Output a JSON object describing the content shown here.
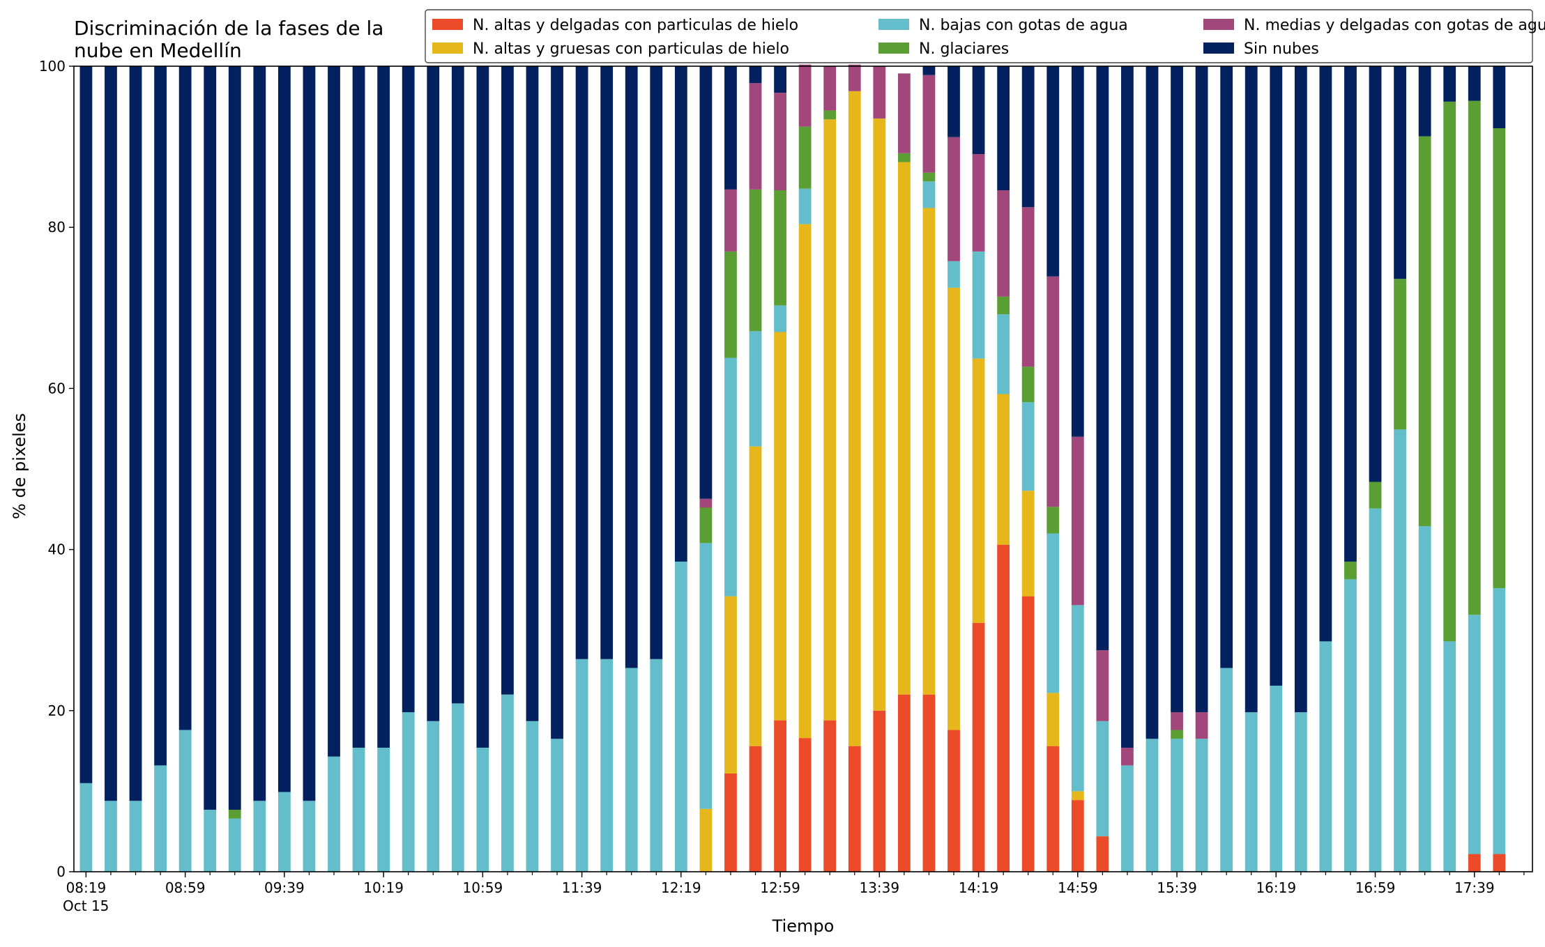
{
  "chart_data": {
    "type": "bar",
    "stacked": true,
    "title": "Discriminación de la fases de la nube en Medellín",
    "title_lines": [
      "Discriminación de la fases de la",
      "nube en Medellín"
    ],
    "xlabel": "Tiempo",
    "ylabel": "% de pixeles",
    "ylim": [
      0,
      100
    ],
    "yticks": [
      0,
      20,
      40,
      60,
      80,
      100
    ],
    "grid": false,
    "legend_position": "top-right",
    "x_start": "08:19",
    "x_interval_minutes": 10,
    "x_tick_labels": [
      "08:19",
      "08:59",
      "09:39",
      "10:19",
      "10:59",
      "11:39",
      "12:19",
      "12:59",
      "13:39",
      "14:19",
      "14:59",
      "15:39",
      "16:19",
      "16:59",
      "17:39"
    ],
    "x_date_label": "Oct 15",
    "categories": [
      "08:19",
      "08:29",
      "08:39",
      "08:49",
      "08:59",
      "09:09",
      "09:19",
      "09:29",
      "09:39",
      "09:49",
      "09:59",
      "10:09",
      "10:19",
      "10:29",
      "10:39",
      "10:49",
      "10:59",
      "11:09",
      "11:19",
      "11:29",
      "11:39",
      "11:49",
      "11:59",
      "12:09",
      "12:19",
      "12:29",
      "12:39",
      "12:49",
      "12:59",
      "13:09",
      "13:19",
      "13:29",
      "13:39",
      "13:49",
      "13:59",
      "14:09",
      "14:19",
      "14:29",
      "14:39",
      "14:49",
      "14:59",
      "15:09",
      "15:19",
      "15:29",
      "15:39",
      "15:49",
      "15:59",
      "16:09",
      "16:19",
      "16:29",
      "16:39",
      "16:49",
      "16:59",
      "17:09",
      "17:19",
      "17:29",
      "17:39",
      "17:49"
    ],
    "series": [
      {
        "name": "N. altas y delgadas con particulas de hielo",
        "color": "#ec4b2a",
        "values": [
          0,
          0,
          0,
          0,
          0,
          0,
          0,
          0,
          0,
          0,
          0,
          0,
          0,
          0,
          0,
          0,
          0,
          0,
          0,
          0,
          0,
          0,
          0,
          0,
          0,
          0,
          12.2,
          15.6,
          18.8,
          16.6,
          18.8,
          15.6,
          20.0,
          22.0,
          22.0,
          17.6,
          30.9,
          40.6,
          34.2,
          15.6,
          8.9,
          4.4,
          0,
          0,
          0,
          0,
          0,
          0,
          0,
          0,
          0,
          0,
          0,
          0,
          0,
          0,
          2.2,
          2.2
        ]
      },
      {
        "name": "N. altas y gruesas con particulas de hielo",
        "color": "#e5b71b",
        "values": [
          0,
          0,
          0,
          0,
          0,
          0,
          0,
          0,
          0,
          0,
          0,
          0,
          0,
          0,
          0,
          0,
          0,
          0,
          0,
          0,
          0,
          0,
          0,
          0,
          0,
          7.8,
          22.0,
          37.2,
          48.2,
          63.8,
          74.6,
          81.3,
          73.5,
          66.1,
          60.4,
          54.9,
          32.8,
          18.7,
          13.1,
          6.6,
          1.1,
          0,
          0,
          0,
          0,
          0,
          0,
          0,
          0,
          0,
          0,
          0,
          0,
          0,
          0,
          0,
          0,
          0
        ]
      },
      {
        "name": "N. bajas con gotas de agua",
        "color": "#63bdca",
        "values": [
          11.0,
          8.8,
          8.8,
          13.2,
          17.6,
          7.7,
          6.6,
          8.8,
          9.9,
          8.8,
          14.3,
          15.4,
          15.4,
          19.8,
          18.7,
          20.9,
          15.4,
          22.0,
          18.7,
          16.5,
          26.4,
          26.4,
          25.3,
          26.4,
          38.5,
          33.0,
          29.6,
          14.3,
          3.3,
          4.4,
          0,
          0,
          0,
          0,
          3.3,
          3.3,
          13.3,
          9.9,
          11.0,
          19.8,
          23.1,
          14.3,
          13.2,
          16.5,
          16.5,
          16.5,
          25.3,
          19.8,
          23.1,
          19.8,
          28.6,
          36.3,
          45.1,
          54.9,
          42.9,
          28.6,
          29.7,
          33.0
        ]
      },
      {
        "name": "N. glaciares",
        "color": "#5b9e33",
        "values": [
          0,
          0,
          0,
          0,
          0,
          0,
          1.1,
          0,
          0,
          0,
          0,
          0,
          0,
          0,
          0,
          0,
          0,
          0,
          0,
          0,
          0,
          0,
          0,
          0,
          0,
          4.4,
          13.2,
          17.6,
          14.3,
          7.7,
          1.1,
          0,
          0,
          1.1,
          1.1,
          0,
          0,
          2.2,
          4.4,
          3.3,
          0,
          0,
          0,
          0,
          1.1,
          0,
          0,
          0,
          0,
          0,
          0,
          2.2,
          3.3,
          18.7,
          48.4,
          67.0,
          63.8,
          57.1
        ]
      },
      {
        "name": "N. medias y delgadas con gotas de agua",
        "color": "#a2477c",
        "values": [
          0,
          0,
          0,
          0,
          0,
          0,
          0,
          0,
          0,
          0,
          0,
          0,
          0,
          0,
          0,
          0,
          0,
          0,
          0,
          0,
          0,
          0,
          0,
          0,
          0,
          1.1,
          7.7,
          13.2,
          12.1,
          7.7,
          5.5,
          3.3,
          6.5,
          9.9,
          12.1,
          15.4,
          12.1,
          13.2,
          19.8,
          28.6,
          20.9,
          8.8,
          2.2,
          0,
          2.2,
          3.3,
          0,
          0,
          0,
          0,
          0,
          0,
          0,
          0,
          0,
          0,
          0,
          0
        ]
      },
      {
        "name": "Sin nubes",
        "color": "#03205f",
        "values": [
          89.0,
          91.2,
          91.2,
          86.8,
          82.4,
          92.3,
          92.3,
          91.2,
          90.1,
          91.2,
          85.7,
          84.6,
          84.6,
          80.2,
          81.3,
          79.1,
          84.6,
          78.0,
          81.3,
          83.5,
          73.6,
          73.6,
          74.7,
          73.6,
          61.5,
          53.7,
          15.3,
          2.1,
          3.3,
          0,
          0,
          0,
          0,
          0,
          1.1,
          8.8,
          10.9,
          15.4,
          17.5,
          26.1,
          46.0,
          72.5,
          84.6,
          83.5,
          80.2,
          80.2,
          74.7,
          80.2,
          76.9,
          80.2,
          71.4,
          61.5,
          51.6,
          26.4,
          8.7,
          4.4,
          4.3,
          7.7
        ]
      }
    ]
  }
}
